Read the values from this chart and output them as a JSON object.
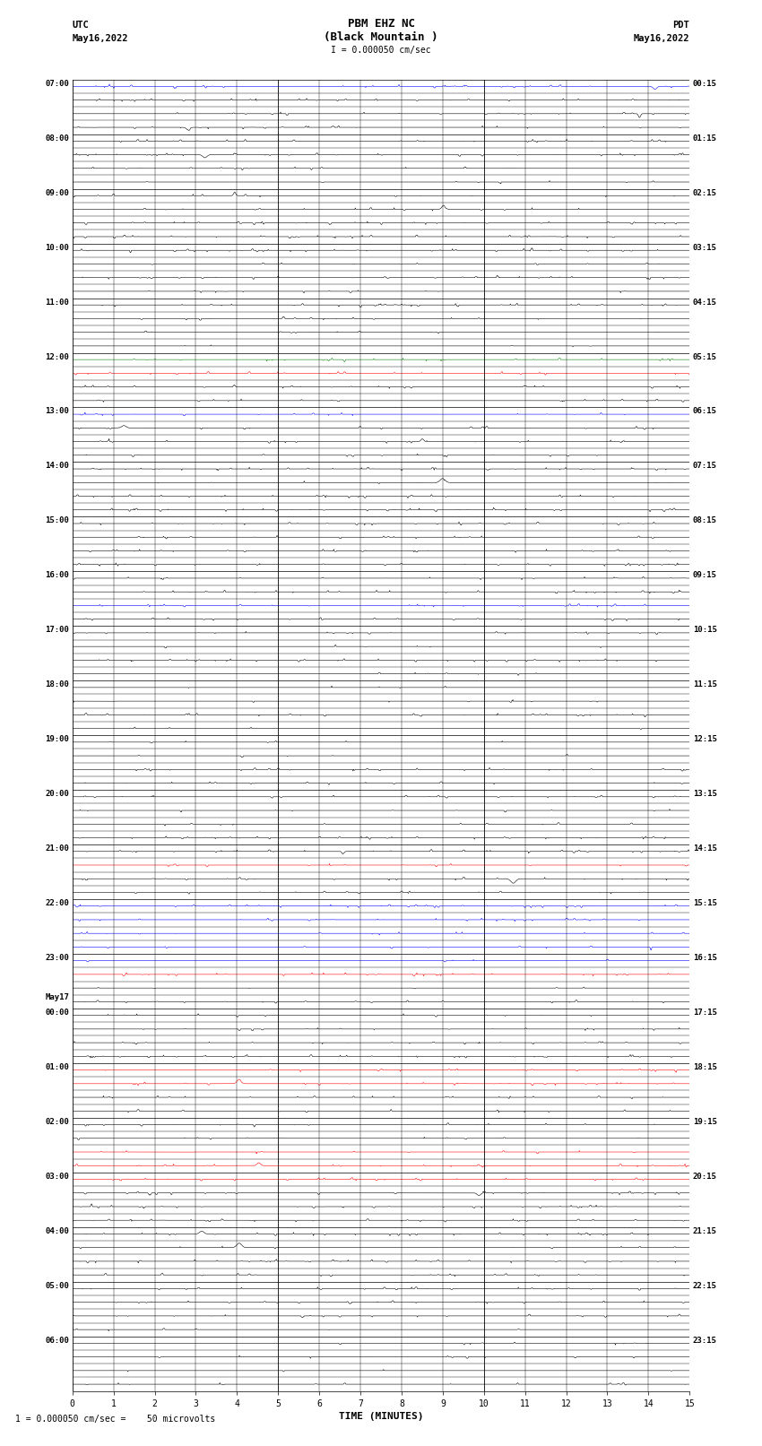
{
  "title_line1": "PBM EHZ NC",
  "title_line2": "(Black Mountain )",
  "title_scale": "I = 0.000050 cm/sec",
  "left_header1": "UTC",
  "left_header2": "May16,2022",
  "right_header1": "PDT",
  "right_header2": "May16,2022",
  "bottom_label": "TIME (MINUTES)",
  "bottom_note": "1 = 0.000050 cm/sec =    50 microvolts",
  "n_rows": 96,
  "n_minutes": 15,
  "background_color": "#ffffff",
  "left_labels": [
    "07:00",
    "",
    "",
    "",
    "08:00",
    "",
    "",
    "",
    "09:00",
    "",
    "",
    "",
    "10:00",
    "",
    "",
    "",
    "11:00",
    "",
    "",
    "",
    "12:00",
    "",
    "",
    "",
    "13:00",
    "",
    "",
    "",
    "14:00",
    "",
    "",
    "",
    "15:00",
    "",
    "",
    "",
    "16:00",
    "",
    "",
    "",
    "17:00",
    "",
    "",
    "",
    "18:00",
    "",
    "",
    "",
    "19:00",
    "",
    "",
    "",
    "20:00",
    "",
    "",
    "",
    "21:00",
    "",
    "",
    "",
    "22:00",
    "",
    "",
    "",
    "23:00",
    "",
    "",
    "",
    "May17\n00:00",
    "",
    "",
    "",
    "01:00",
    "",
    "",
    "",
    "02:00",
    "",
    "",
    "",
    "03:00",
    "",
    "",
    "",
    "04:00",
    "",
    "",
    "",
    "05:00",
    "",
    "",
    "",
    "06:00",
    "",
    "",
    ""
  ],
  "right_labels": [
    "00:15",
    "",
    "",
    "",
    "01:15",
    "",
    "",
    "",
    "02:15",
    "",
    "",
    "",
    "03:15",
    "",
    "",
    "",
    "04:15",
    "",
    "",
    "",
    "05:15",
    "",
    "",
    "",
    "06:15",
    "",
    "",
    "",
    "07:15",
    "",
    "",
    "",
    "08:15",
    "",
    "",
    "",
    "09:15",
    "",
    "",
    "",
    "10:15",
    "",
    "",
    "",
    "11:15",
    "",
    "",
    "",
    "12:15",
    "",
    "",
    "",
    "13:15",
    "",
    "",
    "",
    "14:15",
    "",
    "",
    "",
    "15:15",
    "",
    "",
    "",
    "16:15",
    "",
    "",
    "",
    "17:15",
    "",
    "",
    "",
    "18:15",
    "",
    "",
    "",
    "19:15",
    "",
    "",
    "",
    "20:15",
    "",
    "",
    "",
    "21:15",
    "",
    "",
    "",
    "22:15",
    "",
    "",
    "",
    "23:15",
    "",
    "",
    ""
  ],
  "row_colors": [
    "#0000ff",
    "#000000",
    "#000000",
    "#000000",
    "#000000",
    "#000000",
    "#000000",
    "#000000",
    "#000000",
    "#000000",
    "#000000",
    "#000000",
    "#000000",
    "#000000",
    "#000000",
    "#000000",
    "#000000",
    "#000000",
    "#000000",
    "#000000",
    "#008000",
    "#ff0000",
    "#000000",
    "#000000",
    "#0000ff",
    "#000000",
    "#000000",
    "#000000",
    "#000000",
    "#000000",
    "#000000",
    "#000000",
    "#000000",
    "#000000",
    "#000000",
    "#000000",
    "#000000",
    "#000000",
    "#0000ff",
    "#000000",
    "#000000",
    "#000000",
    "#000000",
    "#000000",
    "#000000",
    "#000000",
    "#000000",
    "#000000",
    "#000000",
    "#000000",
    "#000000",
    "#000000",
    "#000000",
    "#000000",
    "#000000",
    "#000000",
    "#000000",
    "#ff0000",
    "#000000",
    "#000000",
    "#0000ff",
    "#0000ff",
    "#0000ff",
    "#0000ff",
    "#0000ff",
    "#ff0000",
    "#000000",
    "#000000",
    "#000000",
    "#000000",
    "#000000",
    "#000000",
    "#ff0000",
    "#ff0000",
    "#000000",
    "#000000",
    "#000000",
    "#000000",
    "#ff0000",
    "#ff0000",
    "#ff0000",
    "#000000",
    "#000000",
    "#000000",
    "#000000",
    "#000000",
    "#000000",
    "#000000",
    "#000000",
    "#000000",
    "#000000",
    "#000000",
    "#000000",
    "#000000",
    "#000000",
    "#000000"
  ]
}
